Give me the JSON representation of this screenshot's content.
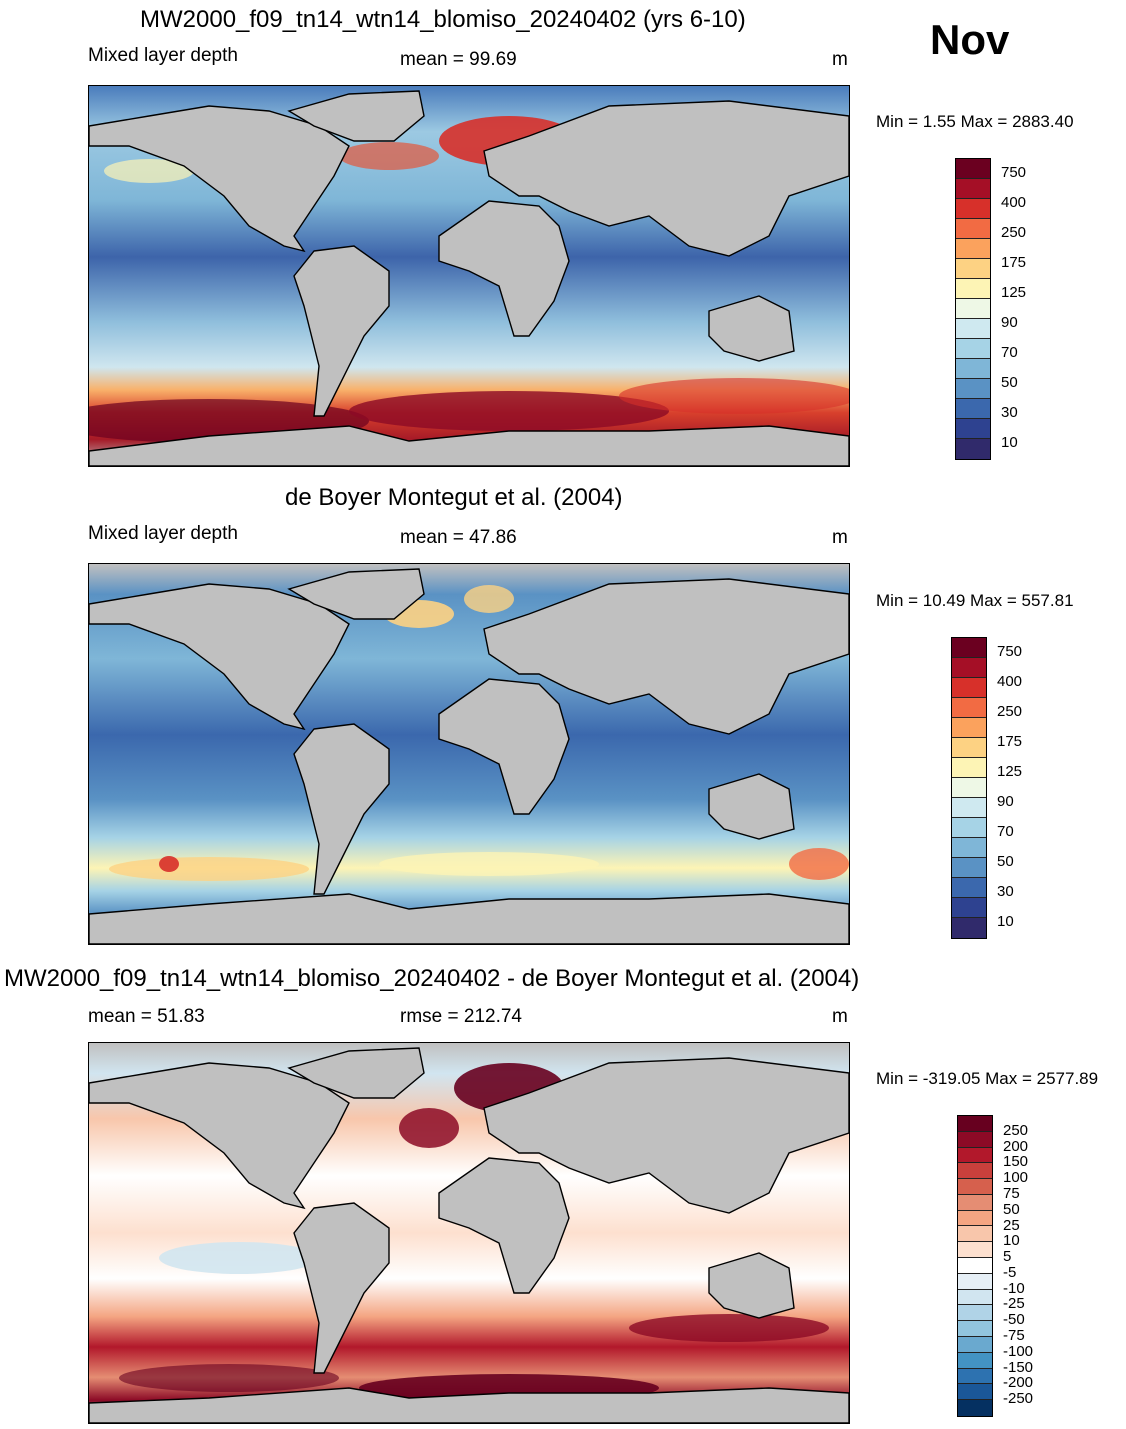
{
  "month": "Nov",
  "units": "m",
  "panels": [
    {
      "title": "MW2000_f09_tn14_wtn14_blomiso_20240402 (yrs 6-10)",
      "left_label": "Mixed layer depth",
      "center_label": "mean =  99.69",
      "units": "m",
      "minmax": "Min =    1.55 Max = 2883.40",
      "colorbar": {
        "labels": [
          "750",
          "400",
          "250",
          "175",
          "125",
          "90",
          "70",
          "50",
          "30",
          "10"
        ],
        "colors": [
          "#6b0020",
          "#a50f26",
          "#d7302a",
          "#f26b43",
          "#fba25d",
          "#fdd283",
          "#fdf4b5",
          "#eef8e6",
          "#cfe9f0",
          "#a6d3e6",
          "#7fb6d7",
          "#5a92c4",
          "#3b68ad",
          "#2e4290",
          "#302a6b"
        ]
      }
    },
    {
      "title": "de Boyer Montegut et al. (2004)",
      "left_label": "Mixed layer depth",
      "center_label": "mean =  47.86",
      "units": "m",
      "minmax": "Min =  10.49 Max = 557.81",
      "colorbar": {
        "labels": [
          "750",
          "400",
          "250",
          "175",
          "125",
          "90",
          "70",
          "50",
          "30",
          "10"
        ],
        "colors": [
          "#6b0020",
          "#a50f26",
          "#d7302a",
          "#f26b43",
          "#fba25d",
          "#fdd283",
          "#fdf4b5",
          "#eef8e6",
          "#cfe9f0",
          "#a6d3e6",
          "#7fb6d7",
          "#5a92c4",
          "#3b68ad",
          "#2e4290",
          "#302a6b"
        ]
      }
    },
    {
      "title": "MW2000_f09_tn14_wtn14_blomiso_20240402 - de Boyer Montegut et al. (2004)",
      "left_label": "mean =  51.83",
      "center_label": "rmse = 212.74",
      "units": "m",
      "minmax": "Min = -319.05 Max = 2577.89",
      "colorbar": {
        "labels": [
          "250",
          "200",
          "150",
          "100",
          "75",
          "50",
          "25",
          "10",
          "5",
          "-5",
          "-10",
          "-25",
          "-50",
          "-75",
          "-100",
          "-150",
          "-200",
          "-250"
        ],
        "colors": [
          "#67001f",
          "#8c0a26",
          "#b2182b",
          "#c9403c",
          "#d6604d",
          "#e58d73",
          "#f4a582",
          "#f8c6ab",
          "#fde0cf",
          "#ffffff",
          "#e6eff6",
          "#d1e5f0",
          "#b0d3e7",
          "#92c5de",
          "#6aa9cf",
          "#4393c3",
          "#2d72b0",
          "#1a5798",
          "#053061"
        ]
      }
    }
  ]
}
